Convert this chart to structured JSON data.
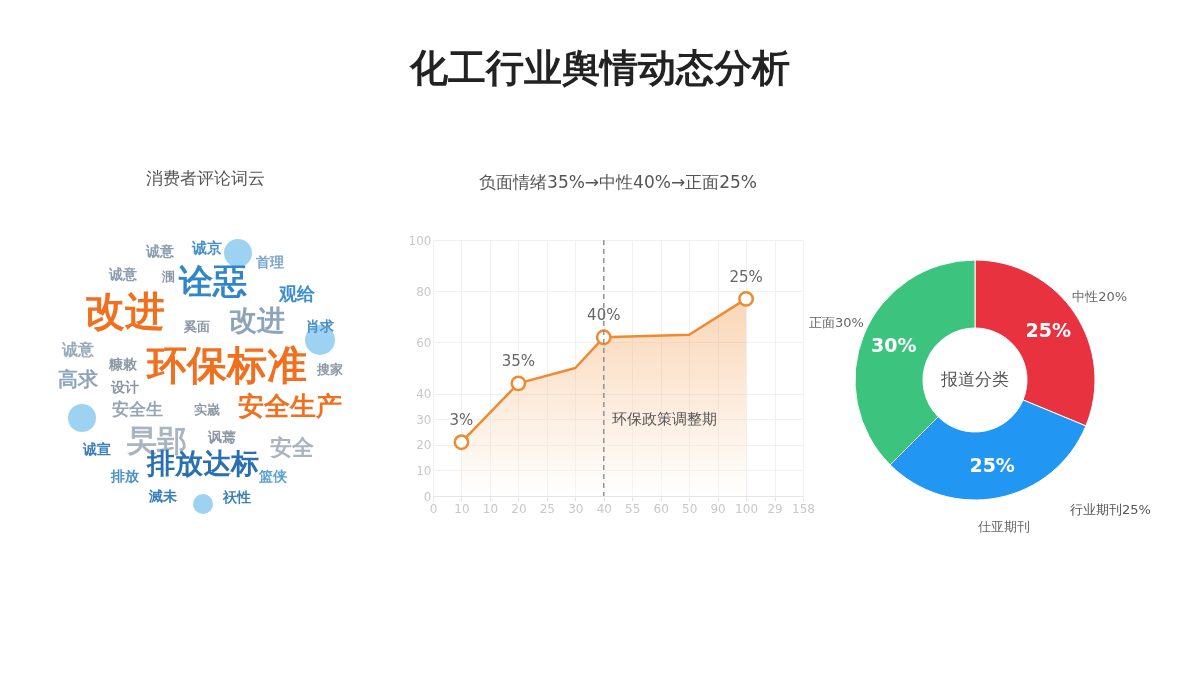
{
  "chart_data": [
    {
      "type": "other",
      "title": "化工行业舆情动态分析"
    },
    {
      "type": "other",
      "title": "消费者评论词云",
      "annotations": [
        "诚意",
        "诚京",
        "首理",
        "诚意",
        "涠",
        "诠惡",
        "观给",
        "改进",
        "奚面",
        "改进",
        "肖求",
        "诚意",
        "糠敕",
        "环保标准",
        "搜家",
        "高求",
        "设计",
        "安全生",
        "安全生产",
        "实嵗",
        "讽蔫",
        "旲郢",
        "安全",
        "诚宣",
        "排放达标",
        "排放",
        "篮侠",
        "滅未",
        "祆性"
      ]
    },
    {
      "type": "line",
      "title": "负面情绪35%→中性40%→正面25%",
      "grid": true,
      "categories": [
        "0",
        "10",
        "10",
        "20",
        "25",
        "30",
        "40",
        "55",
        "60",
        "50",
        "90",
        "100",
        "29",
        "158"
      ],
      "ylim": [
        0,
        100
      ],
      "yticks": [
        0,
        10,
        20,
        30,
        40,
        60,
        80,
        100
      ],
      "series": [
        {
          "type": "area",
          "color": "#f08a30",
          "marker": "none",
          "values": [
            null,
            21,
            null,
            44,
            null,
            50,
            62,
            null,
            null,
            63,
            null,
            77,
            null,
            null
          ]
        },
        {
          "type": "scatter",
          "color": "#f08a30",
          "marker": "circle",
          "values": [
            null,
            21,
            null,
            44,
            null,
            null,
            62,
            null,
            null,
            null,
            null,
            77,
            null,
            null
          ]
        }
      ],
      "annotations": [
        {
          "text": "3%",
          "x": "10",
          "y": 21
        },
        {
          "text": "35%",
          "x": "20",
          "y": 44
        },
        {
          "text": "40%",
          "x": "40",
          "y": 62
        },
        {
          "text": "25%",
          "x": "100",
          "y": 77
        }
      ],
      "ref_lines": [
        {
          "axis": "x",
          "value": "40",
          "label": "环保政策调整期",
          "line_style": "dashed",
          "color": "#888888"
        }
      ]
    },
    {
      "type": "donut",
      "categories": [
        "中性20%",
        "仕亚期刊",
        "正面30%"
      ],
      "values": [
        25,
        25,
        30
      ],
      "colors": [
        "#e8323f",
        "#2196f3",
        "#3cc47f"
      ],
      "data_labels": true,
      "value_labels": [
        "25%",
        "25%",
        "30%"
      ],
      "annotations": [
        "报道分类",
        "行业期刊25%"
      ]
    }
  ]
}
